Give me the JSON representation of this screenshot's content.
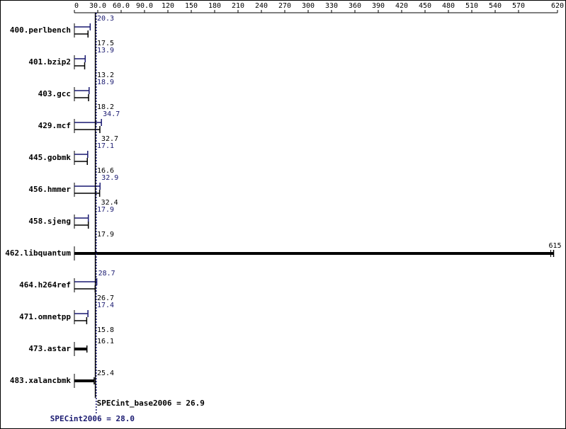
{
  "chart_data": {
    "type": "bar",
    "orientation": "horizontal",
    "categories": [
      "400.perlbench",
      "401.bzip2",
      "403.gcc",
      "429.mcf",
      "445.gobmk",
      "456.hmmer",
      "458.sjeng",
      "462.libquantum",
      "464.h264ref",
      "471.omnetpp",
      "473.astar",
      "483.xalancbmk"
    ],
    "series": [
      {
        "color": "#191970",
        "values": [
          20.3,
          13.9,
          18.9,
          34.7,
          17.1,
          32.9,
          17.9,
          null,
          28.7,
          17.4,
          null,
          null
        ]
      },
      {
        "color": "#000000",
        "values": [
          17.5,
          13.2,
          18.2,
          32.7,
          16.6,
          32.4,
          17.9,
          615,
          26.7,
          15.8,
          16.1,
          25.4
        ]
      }
    ],
    "xlim": [
      0,
      620
    ],
    "xticks": [
      0,
      {
        "value": 30,
        "label": "30.0"
      },
      {
        "value": 60,
        "label": "60.0"
      },
      {
        "value": 90,
        "label": "90.0"
      },
      120,
      150,
      180,
      210,
      240,
      270,
      300,
      330,
      360,
      390,
      420,
      450,
      480,
      510,
      540,
      570,
      620
    ],
    "summaries": [
      {
        "label": "SPECint_base2006 = 26.9",
        "value": 26.9,
        "color": "#000000"
      },
      {
        "label": "SPECint2006 = 28.0",
        "value": 28.0,
        "color": "#191970"
      }
    ]
  }
}
